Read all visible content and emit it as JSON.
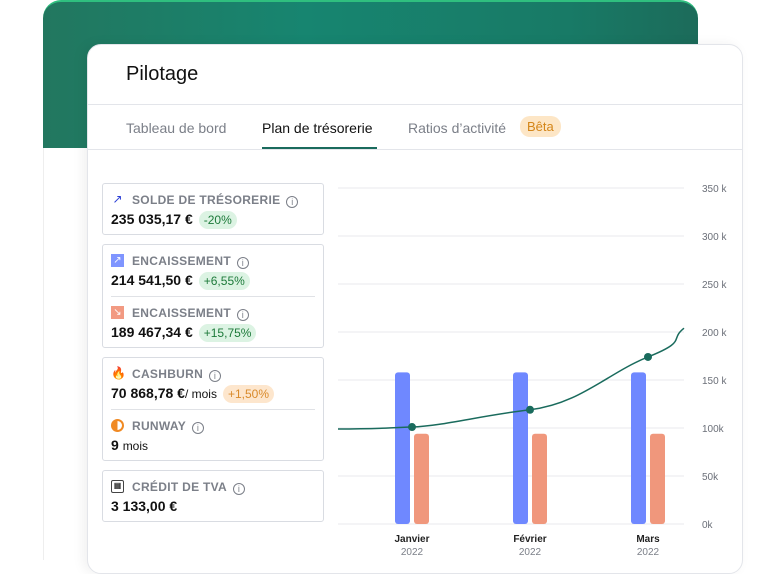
{
  "header": {
    "title": "Pilotage"
  },
  "tabs": [
    {
      "label": "Tableau de bord"
    },
    {
      "label": "Plan de trésorerie",
      "active": true
    },
    {
      "label": "Ratios d’activité",
      "badge": "Bêta"
    }
  ],
  "kpis": {
    "solde": {
      "label": "SOLDE DE TRÉSORERIE",
      "value": "235 035,17 €",
      "delta": "-20%",
      "icon": "trend-up-icon"
    },
    "encaissement_in": {
      "label": "ENCAISSEMENT",
      "value": "214 541,50 €",
      "delta": "+6,55%",
      "icon": "arrow-up-right-icon"
    },
    "encaissement_out": {
      "label": "ENCAISSEMENT",
      "value": "189 467,34 €",
      "delta": "+15,75%",
      "icon": "arrow-down-right-icon"
    },
    "cashburn": {
      "label": "CASHBURN",
      "value": "70 868,78 €",
      "unit": "/ mois",
      "delta": "+1,50%",
      "icon": "flame-icon"
    },
    "runway": {
      "label": "RUNWAY",
      "value": "9",
      "unit": "mois",
      "icon": "clock-icon"
    },
    "tva": {
      "label": "CRÉDIT DE TVA",
      "value": "3 133,00 €",
      "icon": "calculator-icon"
    }
  },
  "colors": {
    "accent": "#1a6b5d",
    "blue": "#6f88ff",
    "orange": "#f0977c",
    "green_bg": "#178570"
  },
  "chart_data": {
    "type": "bar+line",
    "categories": [
      "Janvier",
      "Février",
      "Mars"
    ],
    "subcategories": [
      "2022",
      "2022",
      "2022"
    ],
    "series": [
      {
        "type": "bar",
        "color": "#6f88ff",
        "values": [
          158000,
          158000,
          158000
        ]
      },
      {
        "type": "bar",
        "color": "#f0977c",
        "values": [
          94000,
          94000,
          94000
        ]
      },
      {
        "type": "line",
        "color": "#1a6b5d",
        "values": [
          101000,
          119000,
          174000
        ]
      }
    ],
    "y_ticks": [
      "0k",
      "50k",
      "100k",
      "150 k",
      "200 k",
      "250 k",
      "300 k",
      "350 k"
    ],
    "ylim": [
      0,
      350000
    ],
    "grid": true
  }
}
